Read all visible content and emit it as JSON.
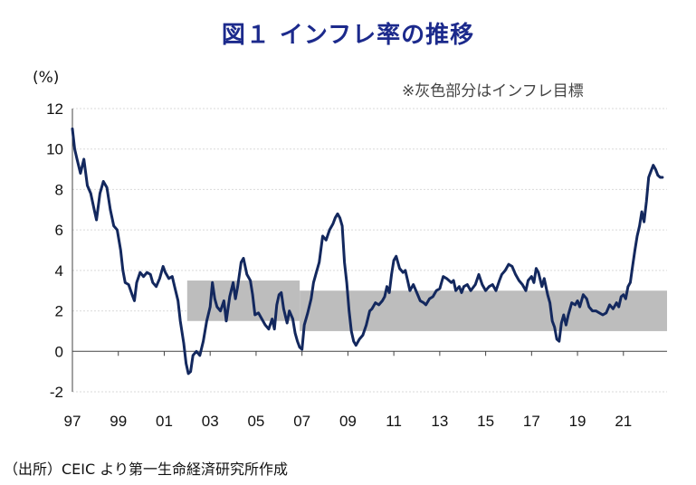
{
  "title": "図１ インフレ率の推移",
  "y_unit": "(%)",
  "note": "※灰色部分はインフレ目標",
  "source": "（出所）CEIC より第一生命経済研究所作成",
  "colors": {
    "line": "#13285e",
    "band": "#bdbdbd",
    "grid": "#d9d9d9",
    "title": "#1c2a8c"
  },
  "chart_data": {
    "type": "line",
    "ylim": [
      -2,
      12
    ],
    "xlim": [
      1997.0,
      2022.9
    ],
    "yticks": [
      -2,
      0,
      2,
      4,
      6,
      8,
      10,
      12
    ],
    "xticks": [
      {
        "value": 1997,
        "label": "97"
      },
      {
        "value": 1999,
        "label": "99"
      },
      {
        "value": 2001,
        "label": "01"
      },
      {
        "value": 2003,
        "label": "03"
      },
      {
        "value": 2005,
        "label": "05"
      },
      {
        "value": 2007,
        "label": "07"
      },
      {
        "value": 2009,
        "label": "09"
      },
      {
        "value": 2011,
        "label": "11"
      },
      {
        "value": 2013,
        "label": "13"
      },
      {
        "value": 2015,
        "label": "15"
      },
      {
        "value": 2017,
        "label": "17"
      },
      {
        "value": 2019,
        "label": "19"
      },
      {
        "value": 2021,
        "label": "21"
      }
    ],
    "grid": "horizontal",
    "target_band": [
      {
        "x": [
          2002.0,
          2006.9
        ],
        "low": 1.5,
        "high": 3.5
      },
      {
        "x": [
          2006.9,
          2022.9
        ],
        "low": 1.0,
        "high": 3.0
      }
    ],
    "series": [
      {
        "points": [
          [
            1997.0,
            11.0
          ],
          [
            1997.1,
            10.0
          ],
          [
            1997.2,
            9.5
          ],
          [
            1997.35,
            8.8
          ],
          [
            1997.5,
            9.5
          ],
          [
            1997.65,
            8.2
          ],
          [
            1997.8,
            7.8
          ],
          [
            1997.95,
            7.0
          ],
          [
            1998.05,
            6.5
          ],
          [
            1998.2,
            7.8
          ],
          [
            1998.35,
            8.4
          ],
          [
            1998.5,
            8.1
          ],
          [
            1998.65,
            7.0
          ],
          [
            1998.8,
            6.2
          ],
          [
            1998.95,
            6.0
          ],
          [
            1999.1,
            5.0
          ],
          [
            1999.2,
            4.0
          ],
          [
            1999.3,
            3.4
          ],
          [
            1999.45,
            3.3
          ],
          [
            1999.6,
            2.8
          ],
          [
            1999.7,
            2.5
          ],
          [
            1999.8,
            3.4
          ],
          [
            1999.95,
            3.9
          ],
          [
            2000.1,
            3.7
          ],
          [
            2000.25,
            3.9
          ],
          [
            2000.4,
            3.8
          ],
          [
            2000.5,
            3.4
          ],
          [
            2000.65,
            3.2
          ],
          [
            2000.8,
            3.6
          ],
          [
            2000.95,
            4.2
          ],
          [
            2001.05,
            3.9
          ],
          [
            2001.2,
            3.6
          ],
          [
            2001.35,
            3.7
          ],
          [
            2001.45,
            3.2
          ],
          [
            2001.6,
            2.5
          ],
          [
            2001.7,
            1.5
          ],
          [
            2001.85,
            0.4
          ],
          [
            2001.95,
            -0.6
          ],
          [
            2002.05,
            -1.1
          ],
          [
            2002.15,
            -1.0
          ],
          [
            2002.25,
            -0.2
          ],
          [
            2002.4,
            0.0
          ],
          [
            2002.55,
            -0.2
          ],
          [
            2002.7,
            0.5
          ],
          [
            2002.85,
            1.5
          ],
          [
            2003.0,
            2.2
          ],
          [
            2003.1,
            3.4
          ],
          [
            2003.2,
            2.6
          ],
          [
            2003.3,
            2.2
          ],
          [
            2003.45,
            2.0
          ],
          [
            2003.6,
            2.5
          ],
          [
            2003.7,
            1.5
          ],
          [
            2003.85,
            2.7
          ],
          [
            2004.0,
            3.4
          ],
          [
            2004.1,
            2.6
          ],
          [
            2004.2,
            3.2
          ],
          [
            2004.35,
            4.4
          ],
          [
            2004.45,
            4.6
          ],
          [
            2004.6,
            3.8
          ],
          [
            2004.75,
            3.5
          ],
          [
            2004.85,
            2.8
          ],
          [
            2004.95,
            1.8
          ],
          [
            2005.1,
            1.9
          ],
          [
            2005.25,
            1.6
          ],
          [
            2005.4,
            1.3
          ],
          [
            2005.55,
            1.1
          ],
          [
            2005.7,
            1.6
          ],
          [
            2005.8,
            1.1
          ],
          [
            2005.9,
            2.3
          ],
          [
            2006.0,
            2.8
          ],
          [
            2006.1,
            2.9
          ],
          [
            2006.2,
            2.1
          ],
          [
            2006.35,
            1.4
          ],
          [
            2006.45,
            2.0
          ],
          [
            2006.6,
            1.6
          ],
          [
            2006.7,
            0.9
          ],
          [
            2006.8,
            0.5
          ],
          [
            2006.9,
            0.2
          ],
          [
            2007.0,
            0.1
          ],
          [
            2007.1,
            1.3
          ],
          [
            2007.25,
            1.9
          ],
          [
            2007.4,
            2.6
          ],
          [
            2007.5,
            3.4
          ],
          [
            2007.6,
            3.8
          ],
          [
            2007.75,
            4.4
          ],
          [
            2007.9,
            5.7
          ],
          [
            2008.05,
            5.5
          ],
          [
            2008.2,
            6.0
          ],
          [
            2008.35,
            6.3
          ],
          [
            2008.45,
            6.6
          ],
          [
            2008.55,
            6.8
          ],
          [
            2008.65,
            6.6
          ],
          [
            2008.75,
            6.2
          ],
          [
            2008.85,
            4.4
          ],
          [
            2008.95,
            3.4
          ],
          [
            2009.05,
            2.0
          ],
          [
            2009.15,
            1.0
          ],
          [
            2009.25,
            0.5
          ],
          [
            2009.35,
            0.3
          ],
          [
            2009.5,
            0.6
          ],
          [
            2009.65,
            0.8
          ],
          [
            2009.8,
            1.3
          ],
          [
            2009.95,
            2.0
          ],
          [
            2010.05,
            2.1
          ],
          [
            2010.2,
            2.4
          ],
          [
            2010.35,
            2.3
          ],
          [
            2010.5,
            2.5
          ],
          [
            2010.6,
            2.7
          ],
          [
            2010.7,
            3.2
          ],
          [
            2010.8,
            2.9
          ],
          [
            2010.9,
            3.8
          ],
          [
            2011.0,
            4.5
          ],
          [
            2011.1,
            4.7
          ],
          [
            2011.25,
            4.1
          ],
          [
            2011.4,
            3.9
          ],
          [
            2011.5,
            4.0
          ],
          [
            2011.6,
            3.5
          ],
          [
            2011.7,
            3.0
          ],
          [
            2011.85,
            3.3
          ],
          [
            2012.0,
            2.9
          ],
          [
            2012.15,
            2.5
          ],
          [
            2012.3,
            2.4
          ],
          [
            2012.4,
            2.3
          ],
          [
            2012.55,
            2.6
          ],
          [
            2012.7,
            2.7
          ],
          [
            2012.85,
            3.0
          ],
          [
            2013.0,
            3.1
          ],
          [
            2013.15,
            3.7
          ],
          [
            2013.3,
            3.6
          ],
          [
            2013.5,
            3.4
          ],
          [
            2013.6,
            3.5
          ],
          [
            2013.7,
            3.0
          ],
          [
            2013.85,
            3.2
          ],
          [
            2013.95,
            2.9
          ],
          [
            2014.05,
            3.2
          ],
          [
            2014.2,
            3.3
          ],
          [
            2014.35,
            3.0
          ],
          [
            2014.55,
            3.3
          ],
          [
            2014.7,
            3.8
          ],
          [
            2014.85,
            3.3
          ],
          [
            2015.0,
            3.0
          ],
          [
            2015.15,
            3.2
          ],
          [
            2015.3,
            3.3
          ],
          [
            2015.45,
            3.0
          ],
          [
            2015.6,
            3.5
          ],
          [
            2015.7,
            3.8
          ],
          [
            2015.85,
            4.0
          ],
          [
            2016.0,
            4.3
          ],
          [
            2016.15,
            4.2
          ],
          [
            2016.3,
            3.8
          ],
          [
            2016.45,
            3.5
          ],
          [
            2016.6,
            3.3
          ],
          [
            2016.75,
            3.0
          ],
          [
            2016.85,
            3.5
          ],
          [
            2017.0,
            3.7
          ],
          [
            2017.1,
            3.4
          ],
          [
            2017.2,
            4.1
          ],
          [
            2017.3,
            3.9
          ],
          [
            2017.45,
            3.2
          ],
          [
            2017.55,
            3.6
          ],
          [
            2017.7,
            2.8
          ],
          [
            2017.8,
            2.4
          ],
          [
            2017.9,
            1.5
          ],
          [
            2018.0,
            1.2
          ],
          [
            2018.1,
            0.6
          ],
          [
            2018.2,
            0.5
          ],
          [
            2018.3,
            1.4
          ],
          [
            2018.4,
            1.8
          ],
          [
            2018.5,
            1.3
          ],
          [
            2018.6,
            1.8
          ],
          [
            2018.75,
            2.4
          ],
          [
            2018.9,
            2.3
          ],
          [
            2019.0,
            2.5
          ],
          [
            2019.1,
            2.2
          ],
          [
            2019.25,
            2.8
          ],
          [
            2019.4,
            2.6
          ],
          [
            2019.5,
            2.2
          ],
          [
            2019.65,
            2.0
          ],
          [
            2019.8,
            2.0
          ],
          [
            2019.95,
            1.9
          ],
          [
            2020.1,
            1.8
          ],
          [
            2020.25,
            1.9
          ],
          [
            2020.4,
            2.3
          ],
          [
            2020.55,
            2.1
          ],
          [
            2020.7,
            2.4
          ],
          [
            2020.8,
            2.2
          ],
          [
            2020.9,
            2.7
          ],
          [
            2021.0,
            2.8
          ],
          [
            2021.1,
            2.6
          ],
          [
            2021.2,
            3.2
          ],
          [
            2021.3,
            3.4
          ],
          [
            2021.4,
            4.2
          ],
          [
            2021.5,
            5.0
          ],
          [
            2021.6,
            5.7
          ],
          [
            2021.7,
            6.2
          ],
          [
            2021.8,
            6.9
          ],
          [
            2021.9,
            6.4
          ],
          [
            2022.0,
            7.4
          ],
          [
            2022.1,
            8.6
          ],
          [
            2022.2,
            8.9
          ],
          [
            2022.3,
            9.2
          ],
          [
            2022.4,
            9.0
          ],
          [
            2022.5,
            8.7
          ],
          [
            2022.6,
            8.6
          ],
          [
            2022.7,
            8.6
          ]
        ]
      }
    ]
  }
}
